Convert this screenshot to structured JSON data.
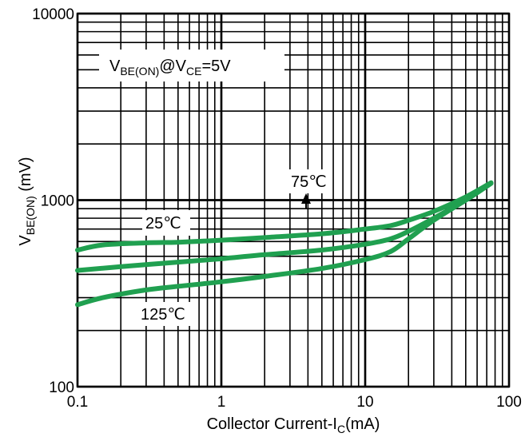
{
  "chart_data": {
    "type": "line",
    "x_scale": "log",
    "y_scale": "log",
    "xlim": [
      0.1,
      100
    ],
    "ylim": [
      100,
      10000
    ],
    "grid": true,
    "xlabel": {
      "main": "Collector Current-I",
      "sub": "C",
      "suffix": "(mA)"
    },
    "ylabel": {
      "main": "V",
      "sub": "BE(ON)",
      "suffix": " (mV)"
    },
    "x_ticks": [
      {
        "value": 0.1,
        "label": "0.1"
      },
      {
        "value": 1,
        "label": "1"
      },
      {
        "value": 10,
        "label": "10"
      },
      {
        "value": 100,
        "label": "100"
      }
    ],
    "y_ticks": [
      {
        "value": 100,
        "label": "100"
      },
      {
        "value": 1000,
        "label": "1000"
      },
      {
        "value": 10000,
        "label": "10000"
      }
    ],
    "condition_label": {
      "p1": "V",
      "s1": "BE(ON)",
      "p2": "@V",
      "s2": "CE",
      "p3": "=5V"
    },
    "line_color": "#20a050",
    "series": [
      {
        "name": "25℃",
        "x": [
          0.1,
          0.15,
          0.3,
          0.5,
          1,
          2,
          5,
          10,
          15,
          20,
          30,
          50,
          75
        ],
        "y": [
          540,
          575,
          590,
          595,
          610,
          630,
          660,
          700,
          730,
          780,
          870,
          1040,
          1240
        ]
      },
      {
        "name": "75℃",
        "x": [
          0.1,
          0.2,
          0.5,
          1,
          2,
          5,
          10,
          15,
          20,
          30,
          50,
          75
        ],
        "y": [
          420,
          440,
          465,
          485,
          510,
          540,
          580,
          620,
          680,
          800,
          1000,
          1230
        ]
      },
      {
        "name": "125℃",
        "x": [
          0.1,
          0.15,
          0.3,
          0.5,
          1,
          2,
          5,
          10,
          15,
          20,
          30,
          50,
          75
        ],
        "y": [
          275,
          300,
          330,
          345,
          365,
          390,
          430,
          480,
          530,
          620,
          780,
          1000,
          1230
        ]
      }
    ],
    "annotations": [
      {
        "text": "25℃",
        "series": "25℃"
      },
      {
        "text": "75℃",
        "series": "75℃"
      },
      {
        "text": "125℃",
        "series": "125℃"
      }
    ]
  }
}
